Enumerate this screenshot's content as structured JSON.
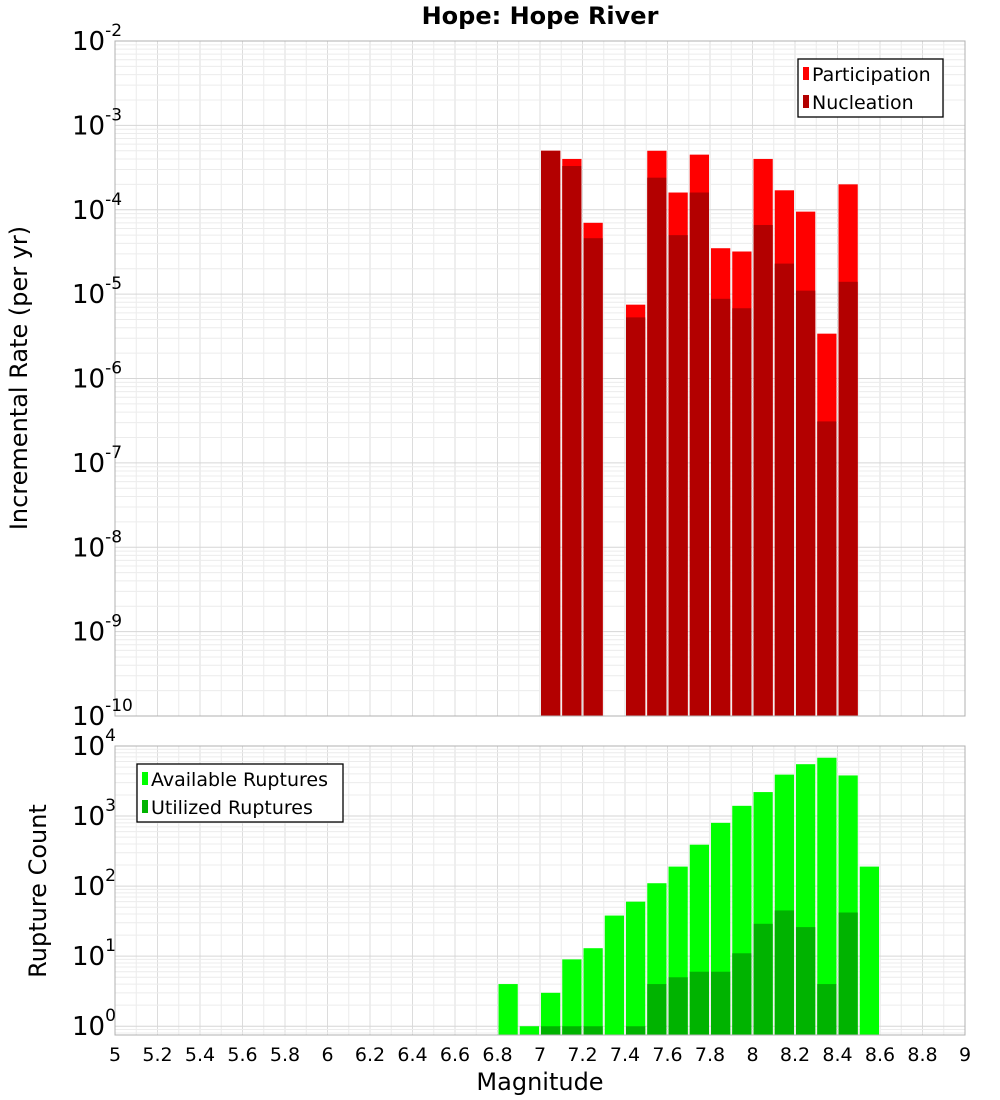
{
  "title": "Hope: Hope River",
  "chart_data": [
    {
      "type": "bar",
      "xlabel": "Magnitude",
      "ylabel": "Incremental Rate (per yr)",
      "yscale": "log",
      "ylim": [
        1e-10,
        0.01
      ],
      "xlim": [
        5,
        9
      ],
      "bin_width": 0.1,
      "grid": true,
      "legend": "top-right",
      "y_ticks": [
        {
          "base": "10",
          "exp": "-10"
        },
        {
          "base": "10",
          "exp": "-9"
        },
        {
          "base": "10",
          "exp": "-8"
        },
        {
          "base": "10",
          "exp": "-7"
        },
        {
          "base": "10",
          "exp": "-6"
        },
        {
          "base": "10",
          "exp": "-5"
        },
        {
          "base": "10",
          "exp": "-4"
        },
        {
          "base": "10",
          "exp": "-3"
        },
        {
          "base": "10",
          "exp": "-2"
        }
      ],
      "x": [
        7.05,
        7.15,
        7.25,
        7.45,
        7.55,
        7.65,
        7.75,
        7.85,
        7.95,
        8.05,
        8.15,
        8.25,
        8.35,
        8.45
      ],
      "series": [
        {
          "name": "Participation",
          "color": "#ff0000",
          "values": [
            0.0005,
            0.0004,
            7e-05,
            7.5e-06,
            0.0005,
            0.00016,
            0.00045,
            3.5e-05,
            3.2e-05,
            0.0004,
            0.00017,
            9.5e-05,
            3.4e-06,
            0.0002
          ]
        },
        {
          "name": "Nucleation",
          "color": "#b30000",
          "values": [
            0.0005,
            0.00033,
            4.6e-05,
            5.3e-06,
            0.00024,
            5e-05,
            0.00016,
            8.8e-06,
            6.8e-06,
            6.6e-05,
            2.3e-05,
            1.1e-05,
            3.1e-07,
            1.4e-05
          ]
        }
      ]
    },
    {
      "type": "bar",
      "xlabel": "Magnitude",
      "ylabel": "Rupture Count",
      "yscale": "log",
      "ylim": [
        0.75,
        10000
      ],
      "xlim": [
        5,
        9
      ],
      "bin_width": 0.1,
      "grid": true,
      "legend": "top-left",
      "y_ticks": [
        {
          "base": "10",
          "exp": "0"
        },
        {
          "base": "10",
          "exp": "1"
        },
        {
          "base": "10",
          "exp": "2"
        },
        {
          "base": "10",
          "exp": "3"
        },
        {
          "base": "10",
          "exp": "4"
        }
      ],
      "x_ticks": [
        "5",
        "5.2",
        "5.4",
        "5.6",
        "5.8",
        "6",
        "6.2",
        "6.4",
        "6.6",
        "6.8",
        "7",
        "7.2",
        "7.4",
        "7.6",
        "7.8",
        "8",
        "8.2",
        "8.4",
        "8.6",
        "8.8",
        "9"
      ],
      "x": [
        6.85,
        6.95,
        7.05,
        7.15,
        7.25,
        7.35,
        7.45,
        7.55,
        7.65,
        7.75,
        7.85,
        7.95,
        8.05,
        8.15,
        8.25,
        8.35,
        8.45,
        8.55
      ],
      "series": [
        {
          "name": "Available Ruptures",
          "color": "#00ff00",
          "values": [
            4,
            1,
            3,
            9,
            13,
            38,
            60,
            110,
            190,
            390,
            800,
            1400,
            2200,
            3900,
            5500,
            6800,
            3800,
            190
          ]
        },
        {
          "name": "Utilized Ruptures",
          "color": "#00b300",
          "values": [
            0,
            0,
            1,
            1,
            1,
            0,
            1,
            4,
            5,
            6,
            6,
            11,
            29,
            45,
            26,
            4,
            42,
            0
          ]
        }
      ]
    }
  ]
}
